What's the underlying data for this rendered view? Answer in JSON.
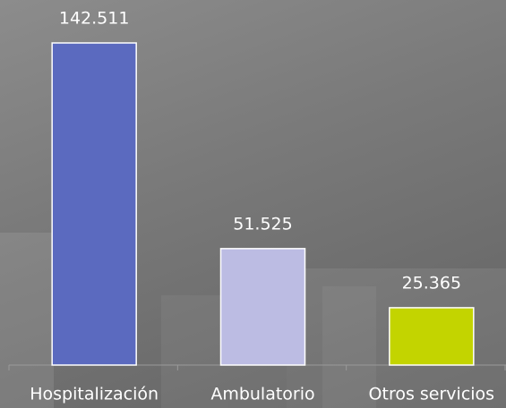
{
  "chart_data": {
    "type": "bar",
    "categories": [
      "Hospitalización",
      "Ambulatorio",
      "Otros servicios"
    ],
    "series": [
      {
        "values": [
          142511,
          51525,
          25365
        ],
        "value_labels": [
          "142.511",
          "51.525",
          "25.365"
        ],
        "colors": [
          "#5b6abf",
          "#bcbce3",
          "#c3d400"
        ]
      }
    ]
  }
}
